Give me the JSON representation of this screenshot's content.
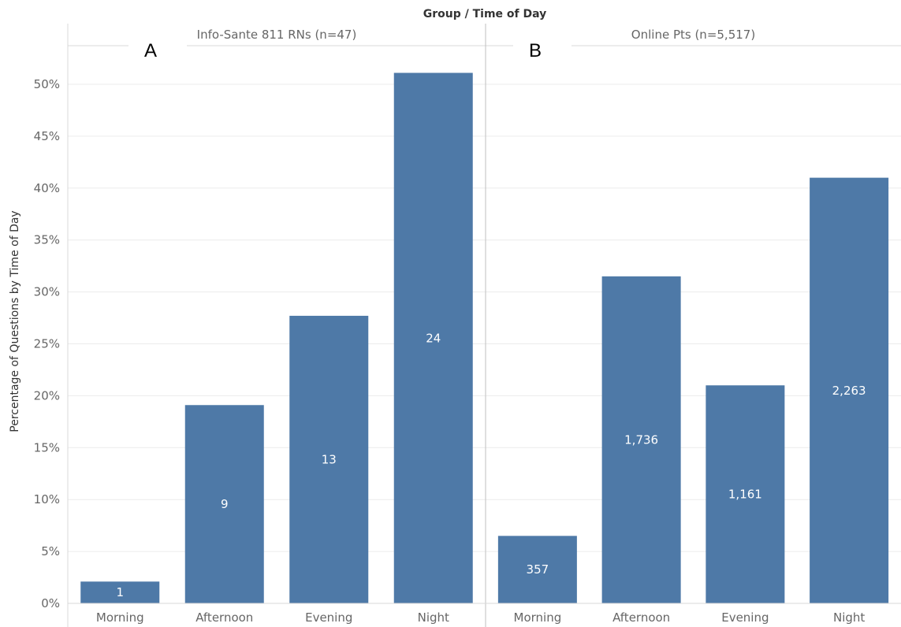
{
  "chart_data": {
    "type": "bar",
    "super_title": "Group / Time of Day",
    "ylabel": "Percentage of Questions by Time of Day",
    "ylim": [
      0,
      0.52
    ],
    "yticks": [
      0,
      0.05,
      0.1,
      0.15,
      0.2,
      0.25,
      0.3,
      0.35,
      0.4,
      0.45,
      0.5
    ],
    "ytick_labels": [
      "0%",
      "5%",
      "10%",
      "15%",
      "20%",
      "25%",
      "30%",
      "35%",
      "40%",
      "45%",
      "50%"
    ],
    "grid": true,
    "bar_color": "#4e79a7",
    "categories": [
      "Morning",
      "Afternoon",
      "Evening",
      "Night"
    ],
    "panels": [
      {
        "title": "Info-Sante 811 RNs (n=47)",
        "letter": "A",
        "values": [
          0.021,
          0.191,
          0.277,
          0.511
        ],
        "labels": [
          "1",
          "9",
          "13",
          "24"
        ]
      },
      {
        "title": "Online Pts (n=5,517)",
        "letter": "B",
        "values": [
          0.065,
          0.315,
          0.21,
          0.41
        ],
        "labels": [
          "357",
          "1,736",
          "1,161",
          "2,263"
        ]
      }
    ]
  }
}
